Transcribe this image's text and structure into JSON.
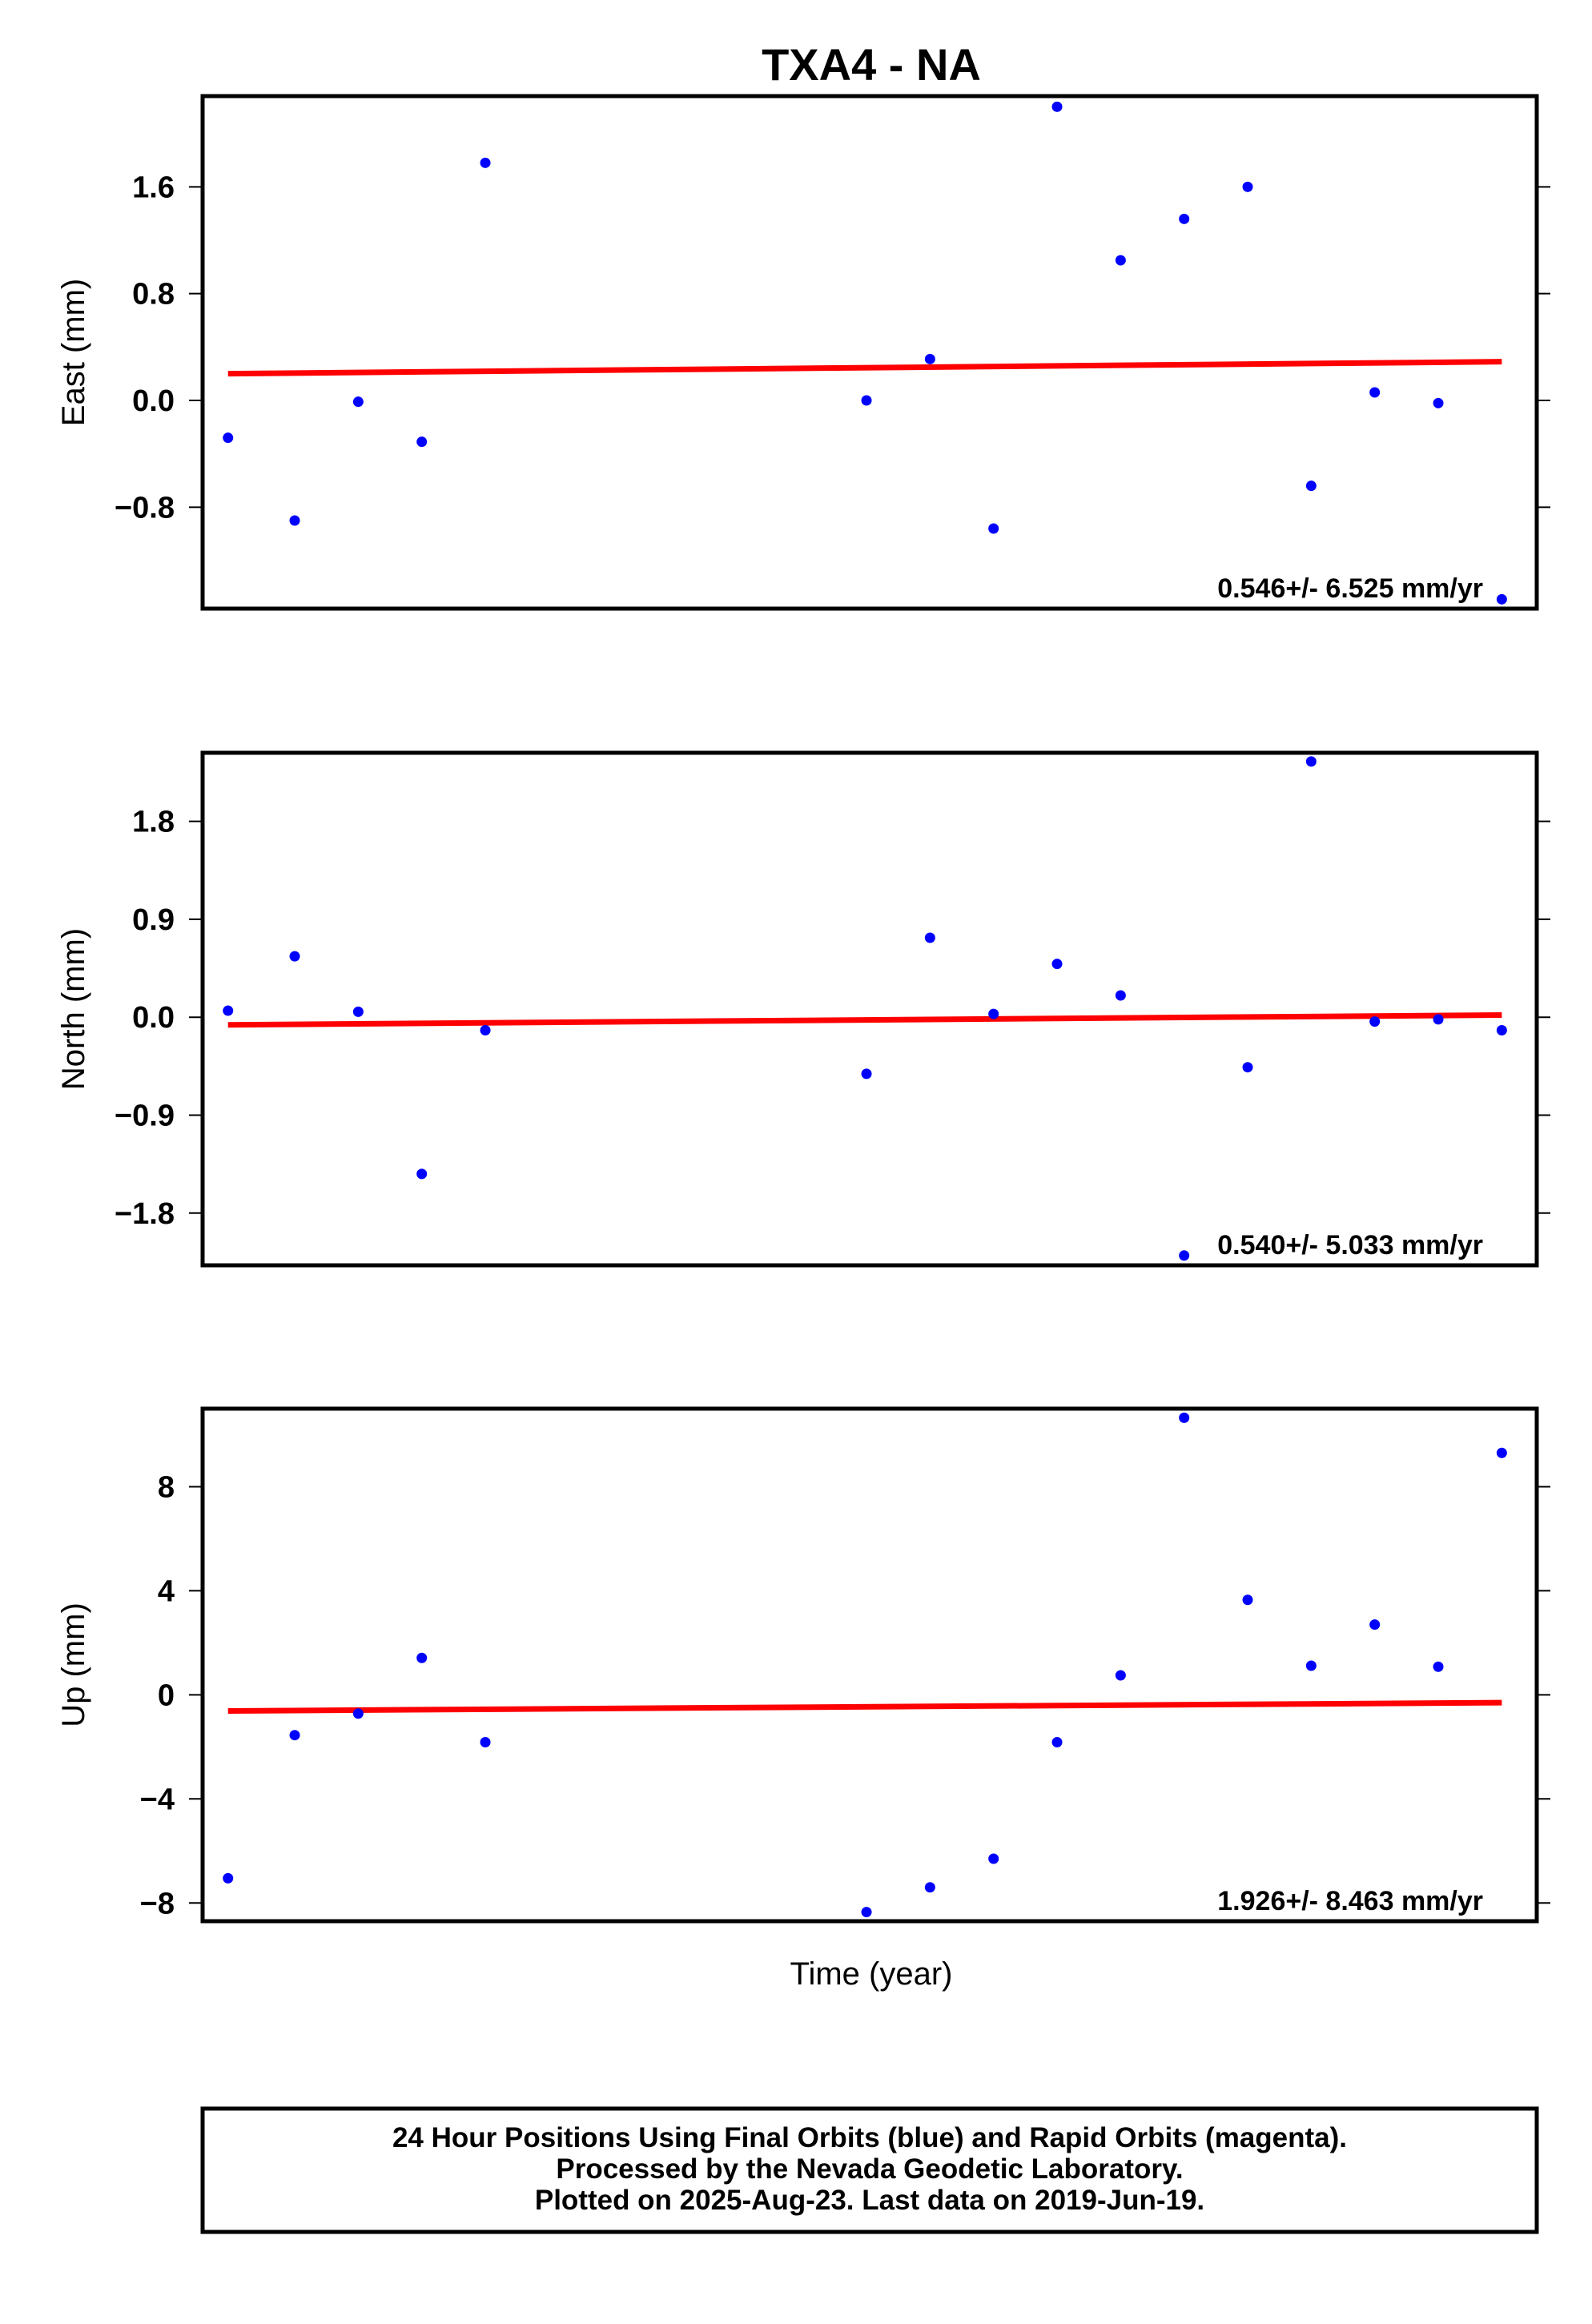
{
  "title": "TXA4 - NA",
  "xlabel": "Time (year)",
  "footer": [
    "24 Hour Positions Using Final Orbits (blue) and Rapid Orbits (magenta).",
    "Processed by the Nevada Geodetic Laboratory.",
    "Plotted on 2025-Aug-23. Last data on 2019-Jun-19."
  ],
  "colors": {
    "points": "#0000ff",
    "fit": "#ff0000",
    "frame": "#000000"
  },
  "chart_data": [
    {
      "type": "scatter",
      "ylabel": "East (mm)",
      "yticks": [
        1.6,
        0.8,
        0.0,
        -0.8
      ],
      "tick_labels": [
        "1.6",
        "0.8",
        "0.0",
        "−0.8"
      ],
      "ylim": [
        -1.56,
        2.28
      ],
      "xlim": [
        0,
        21
      ],
      "x": [
        0.4,
        1.45,
        2.45,
        3.45,
        4.45,
        10.45,
        11.45,
        12.45,
        13.45,
        14.45,
        15.45,
        16.45,
        17.45,
        18.45,
        19.45,
        20.45
      ],
      "y": [
        -0.28,
        -0.9,
        -0.01,
        -0.31,
        1.78,
        0.0,
        0.31,
        -0.96,
        2.2,
        1.05,
        1.36,
        1.6,
        -0.64,
        0.06,
        -0.02,
        -1.49
      ],
      "fit": {
        "x": [
          0.4,
          20.45
        ],
        "y": [
          0.2,
          0.29
        ]
      },
      "rate_text": "0.546+/- 6.525 mm/yr"
    },
    {
      "type": "scatter",
      "ylabel": "North (mm)",
      "yticks": [
        1.8,
        0.9,
        0.0,
        -0.9,
        -1.8
      ],
      "tick_labels": [
        "1.8",
        "0.9",
        "0.0",
        "−0.9",
        "−1.8"
      ],
      "ylim": [
        -2.28,
        2.43
      ],
      "xlim": [
        0,
        21
      ],
      "x": [
        0.4,
        1.45,
        2.45,
        3.45,
        4.45,
        10.45,
        11.45,
        12.45,
        13.45,
        14.45,
        15.45,
        16.45,
        17.45,
        18.45,
        19.45,
        20.45
      ],
      "y": [
        0.06,
        0.56,
        0.05,
        -1.44,
        -0.12,
        -0.52,
        0.73,
        0.03,
        0.49,
        0.2,
        -2.19,
        -0.46,
        2.35,
        -0.04,
        -0.02,
        -0.12
      ],
      "fit": {
        "x": [
          0.4,
          20.45
        ],
        "y": [
          -0.07,
          0.02
        ]
      },
      "rate_text": "0.540+/- 5.033 mm/yr"
    },
    {
      "type": "scatter",
      "ylabel": "Up (mm)",
      "yticks": [
        8,
        4,
        0,
        -4,
        -8
      ],
      "tick_labels": [
        "8",
        "4",
        "0",
        "−4",
        "−8"
      ],
      "ylim": [
        -8.7,
        11.0
      ],
      "xlim": [
        0,
        21
      ],
      "x": [
        0.4,
        1.45,
        2.45,
        3.45,
        4.45,
        10.45,
        11.45,
        12.45,
        13.45,
        14.45,
        15.45,
        16.45,
        17.45,
        18.45,
        19.45,
        20.45
      ],
      "y": [
        -7.05,
        -1.55,
        -0.72,
        1.42,
        -1.82,
        -8.35,
        -7.4,
        -6.3,
        -1.82,
        0.75,
        10.65,
        3.65,
        1.12,
        2.7,
        1.08,
        9.3
      ],
      "fit": {
        "x": [
          0.4,
          20.45
        ],
        "y": [
          -0.62,
          -0.3
        ]
      },
      "rate_text": "1.926+/- 8.463 mm/yr"
    }
  ]
}
